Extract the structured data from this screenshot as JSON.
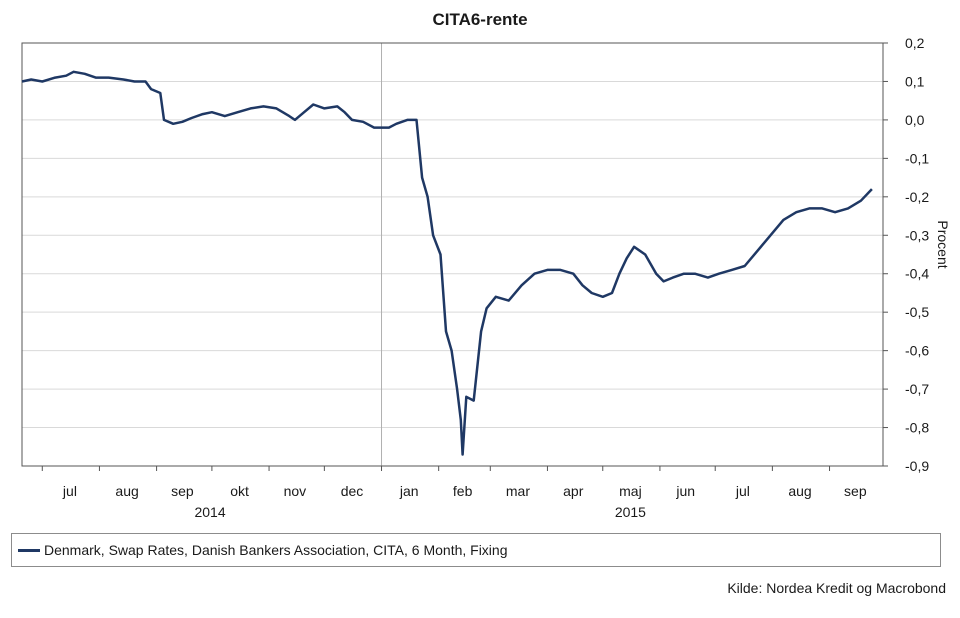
{
  "title": "CITA6-rente",
  "source": "Kilde: Nordea Kredit og Macrobond",
  "legend_label": "Denmark, Swap Rates, Danish Bankers Association, CITA, 6 Month, Fixing",
  "colors": {
    "series": "#1f3864",
    "grid": "#d9d9d9",
    "axis": "#555555"
  },
  "chart_data": {
    "type": "line",
    "title": "CITA6-rente",
    "ylabel": "Procent",
    "y_axis_side": "right",
    "ylim": [
      -0.9,
      0.2
    ],
    "yticks": [
      0.2,
      0.1,
      0.0,
      -0.1,
      -0.2,
      -0.3,
      -0.4,
      -0.5,
      -0.6,
      -0.7,
      -0.8,
      -0.9
    ],
    "ytick_labels": [
      "0,2",
      "0,1",
      "0,0",
      "-0,1",
      "-0,2",
      "-0,3",
      "-0,4",
      "-0,5",
      "-0,6",
      "-0,7",
      "-0,8",
      "-0,9"
    ],
    "xlim": [
      "2014-06-20",
      "2015-09-30"
    ],
    "month_labels": [
      {
        "label": "jul",
        "date": "2014-07-16"
      },
      {
        "label": "aug",
        "date": "2014-08-16"
      },
      {
        "label": "sep",
        "date": "2014-09-15"
      },
      {
        "label": "okt",
        "date": "2014-10-16"
      },
      {
        "label": "nov",
        "date": "2014-11-15"
      },
      {
        "label": "dec",
        "date": "2014-12-16"
      },
      {
        "label": "jan",
        "date": "2015-01-16"
      },
      {
        "label": "feb",
        "date": "2015-02-14"
      },
      {
        "label": "mar",
        "date": "2015-03-16"
      },
      {
        "label": "apr",
        "date": "2015-04-15"
      },
      {
        "label": "maj",
        "date": "2015-05-16"
      },
      {
        "label": "jun",
        "date": "2015-06-15"
      },
      {
        "label": "jul",
        "date": "2015-07-16"
      },
      {
        "label": "aug",
        "date": "2015-08-16"
      },
      {
        "label": "sep",
        "date": "2015-09-15"
      }
    ],
    "year_labels": [
      {
        "label": "2014",
        "date": "2014-09-30"
      },
      {
        "label": "2015",
        "date": "2015-05-16"
      }
    ],
    "year_divider": "2015-01-01",
    "legend_position": "bottom",
    "grid": true,
    "series": [
      {
        "name": "Denmark, Swap Rates, Danish Bankers Association, CITA, 6 Month, Fixing",
        "points": [
          [
            "2014-06-20",
            0.1
          ],
          [
            "2014-06-25",
            0.105
          ],
          [
            "2014-07-01",
            0.1
          ],
          [
            "2014-07-08",
            0.11
          ],
          [
            "2014-07-14",
            0.115
          ],
          [
            "2014-07-18",
            0.125
          ],
          [
            "2014-07-24",
            0.12
          ],
          [
            "2014-07-30",
            0.11
          ],
          [
            "2014-08-06",
            0.11
          ],
          [
            "2014-08-14",
            0.105
          ],
          [
            "2014-08-20",
            0.1
          ],
          [
            "2014-08-26",
            0.1
          ],
          [
            "2014-08-29",
            0.08
          ],
          [
            "2014-09-03",
            0.07
          ],
          [
            "2014-09-05",
            0.0
          ],
          [
            "2014-09-10",
            -0.01
          ],
          [
            "2014-09-15",
            -0.005
          ],
          [
            "2014-09-20",
            0.005
          ],
          [
            "2014-09-26",
            0.015
          ],
          [
            "2014-10-01",
            0.02
          ],
          [
            "2014-10-08",
            0.01
          ],
          [
            "2014-10-15",
            0.02
          ],
          [
            "2014-10-22",
            0.03
          ],
          [
            "2014-10-29",
            0.035
          ],
          [
            "2014-11-05",
            0.03
          ],
          [
            "2014-11-12",
            0.01
          ],
          [
            "2014-11-15",
            0.0
          ],
          [
            "2014-11-20",
            0.02
          ],
          [
            "2014-11-25",
            0.04
          ],
          [
            "2014-12-01",
            0.03
          ],
          [
            "2014-12-08",
            0.035
          ],
          [
            "2014-12-12",
            0.02
          ],
          [
            "2014-12-16",
            0.0
          ],
          [
            "2014-12-22",
            -0.005
          ],
          [
            "2014-12-28",
            -0.02
          ],
          [
            "2015-01-05",
            -0.02
          ],
          [
            "2015-01-09",
            -0.01
          ],
          [
            "2015-01-15",
            -0.0
          ],
          [
            "2015-01-20",
            0.0
          ],
          [
            "2015-01-23",
            -0.15
          ],
          [
            "2015-01-26",
            -0.2
          ],
          [
            "2015-01-29",
            -0.3
          ],
          [
            "2015-02-02",
            -0.35
          ],
          [
            "2015-02-05",
            -0.55
          ],
          [
            "2015-02-08",
            -0.6
          ],
          [
            "2015-02-11",
            -0.7
          ],
          [
            "2015-02-13",
            -0.78
          ],
          [
            "2015-02-14",
            -0.87
          ],
          [
            "2015-02-16",
            -0.72
          ],
          [
            "2015-02-20",
            -0.73
          ],
          [
            "2015-02-24",
            -0.55
          ],
          [
            "2015-02-27",
            -0.49
          ],
          [
            "2015-03-04",
            -0.46
          ],
          [
            "2015-03-11",
            -0.47
          ],
          [
            "2015-03-18",
            -0.43
          ],
          [
            "2015-03-25",
            -0.4
          ],
          [
            "2015-04-01",
            -0.39
          ],
          [
            "2015-04-08",
            -0.39
          ],
          [
            "2015-04-15",
            -0.4
          ],
          [
            "2015-04-20",
            -0.43
          ],
          [
            "2015-04-25",
            -0.45
          ],
          [
            "2015-05-01",
            -0.46
          ],
          [
            "2015-05-06",
            -0.45
          ],
          [
            "2015-05-10",
            -0.4
          ],
          [
            "2015-05-14",
            -0.36
          ],
          [
            "2015-05-18",
            -0.33
          ],
          [
            "2015-05-24",
            -0.35
          ],
          [
            "2015-05-30",
            -0.4
          ],
          [
            "2015-06-03",
            -0.42
          ],
          [
            "2015-06-08",
            -0.41
          ],
          [
            "2015-06-14",
            -0.4
          ],
          [
            "2015-06-20",
            -0.4
          ],
          [
            "2015-06-27",
            -0.41
          ],
          [
            "2015-07-03",
            -0.4
          ],
          [
            "2015-07-10",
            -0.39
          ],
          [
            "2015-07-17",
            -0.38
          ],
          [
            "2015-07-24",
            -0.34
          ],
          [
            "2015-07-31",
            -0.3
          ],
          [
            "2015-08-07",
            -0.26
          ],
          [
            "2015-08-14",
            -0.24
          ],
          [
            "2015-08-21",
            -0.23
          ],
          [
            "2015-08-28",
            -0.23
          ],
          [
            "2015-09-04",
            -0.24
          ],
          [
            "2015-09-11",
            -0.23
          ],
          [
            "2015-09-18",
            -0.21
          ],
          [
            "2015-09-24",
            -0.18
          ]
        ]
      }
    ]
  }
}
